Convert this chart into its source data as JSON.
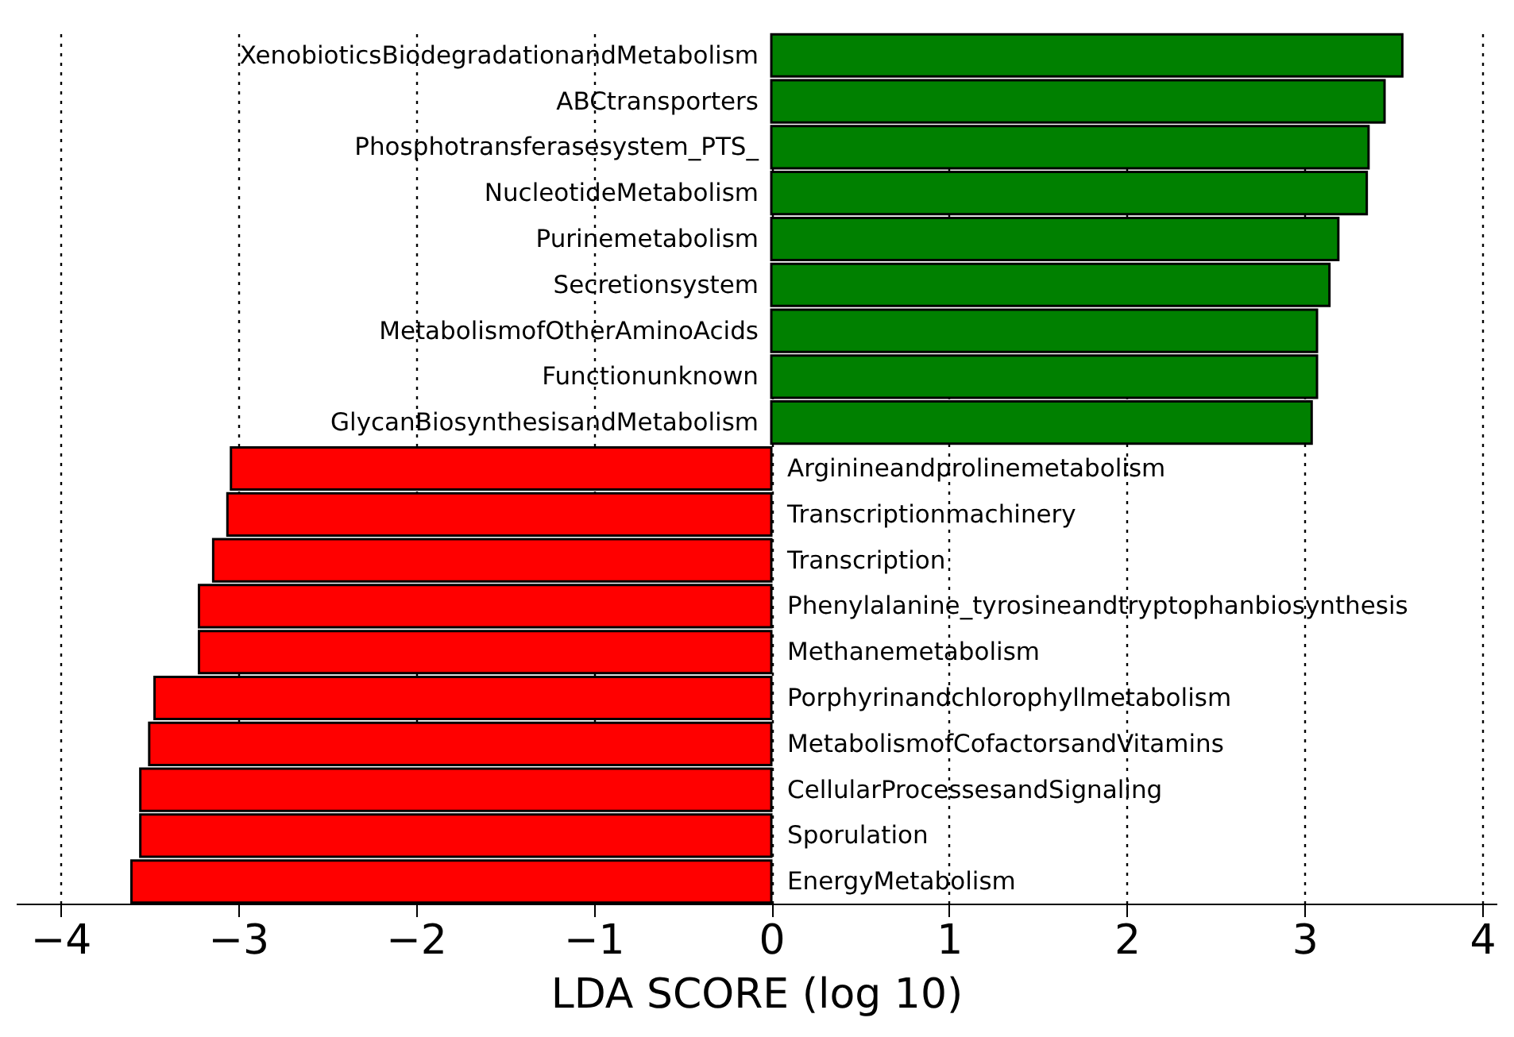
{
  "chart_data": {
    "type": "bar",
    "orientation": "horizontal",
    "xlabel": "LDA SCORE (log 10)",
    "categories": [
      "XenobioticsBiodegradationandMetabolism",
      "ABCtransporters",
      "Phosphotransferasesystem_PTS_",
      "NucleotideMetabolism",
      "Purinemetabolism",
      "Secretionsystem",
      "MetabolismofOtherAminoAcids",
      "Functionunknown",
      "GlycanBiosynthesisandMetabolism",
      "Arginineandprolinemetabolism",
      "Transcriptionmachinery",
      "Transcription",
      "Phenylalanine_tyrosineandtryptophanbiosynthesis",
      "Methanemetabolism",
      "Porphyrinandchlorophyllmetabolism",
      "MetabolismofCofactorsandVitamins",
      "CellularProcessesandSignaling",
      "Sporulation",
      "EnergyMetabolism"
    ],
    "values": [
      3.55,
      3.45,
      3.36,
      3.35,
      3.19,
      3.14,
      3.07,
      3.07,
      3.04,
      -3.04,
      -3.06,
      -3.14,
      -3.22,
      -3.22,
      -3.47,
      -3.5,
      -3.55,
      -3.55,
      -3.6
    ],
    "colors": [
      "#008000",
      "#008000",
      "#008000",
      "#008000",
      "#008000",
      "#008000",
      "#008000",
      "#008000",
      "#008000",
      "#ff0000",
      "#ff0000",
      "#ff0000",
      "#ff0000",
      "#ff0000",
      "#ff0000",
      "#ff0000",
      "#ff0000",
      "#ff0000",
      "#ff0000"
    ],
    "xlim": [
      -4.25,
      4.08
    ],
    "xticks": [
      -4,
      -3,
      -2,
      -1,
      0,
      1,
      2,
      3,
      4
    ],
    "grid": "x",
    "tick_labels": "x"
  }
}
